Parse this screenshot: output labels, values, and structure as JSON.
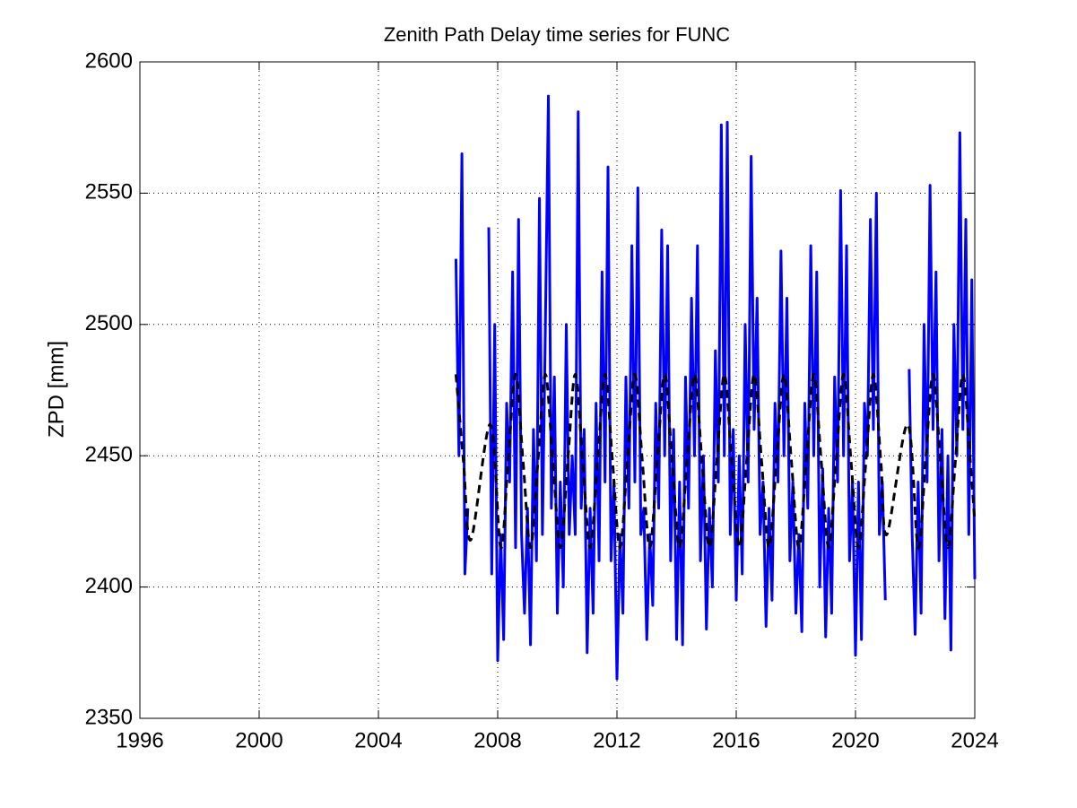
{
  "chart_data": {
    "type": "line",
    "title": "Zenith Path Delay time series for FUNC",
    "y_label": "ZPD [mm]",
    "xlim": [
      1996,
      2024
    ],
    "xticks": [
      1996,
      2000,
      2004,
      2008,
      2012,
      2016,
      2020,
      2024
    ],
    "ylim": [
      2350,
      2600
    ],
    "yticks": [
      2350,
      2400,
      2450,
      2500,
      2550,
      2600
    ],
    "grid": true,
    "series": [
      {
        "color": "#0000ff",
        "x": [
          2006.6,
          2006.7,
          2006.8,
          2006.9,
          2007.0,
          2007.1,
          2007.2,
          2007.3,
          2007.4,
          2007.5,
          2007.6,
          2007.7,
          2007.8,
          2007.9,
          2008.0,
          2008.1,
          2008.2,
          2008.3,
          2008.4,
          2008.5,
          2008.6,
          2008.7,
          2008.8,
          2008.9,
          2009.0,
          2009.1,
          2009.2,
          2009.3,
          2009.4,
          2009.5,
          2009.6,
          2009.7,
          2009.8,
          2009.9,
          2010.0,
          2010.1,
          2010.2,
          2010.3,
          2010.4,
          2010.5,
          2010.6,
          2010.7,
          2010.8,
          2010.9,
          2011.0,
          2011.1,
          2011.2,
          2011.3,
          2011.4,
          2011.5,
          2011.6,
          2011.7,
          2011.8,
          2011.9,
          2012.0,
          2012.1,
          2012.2,
          2012.3,
          2012.4,
          2012.5,
          2012.6,
          2012.7,
          2012.8,
          2012.9,
          2013.0,
          2013.1,
          2013.2,
          2013.3,
          2013.4,
          2013.5,
          2013.6,
          2013.7,
          2013.8,
          2013.9,
          2014.0,
          2014.1,
          2014.2,
          2014.3,
          2014.4,
          2014.5,
          2014.6,
          2014.7,
          2014.8,
          2014.9,
          2015.0,
          2015.1,
          2015.2,
          2015.3,
          2015.4,
          2015.5,
          2015.6,
          2015.7,
          2015.8,
          2015.9,
          2016.0,
          2016.1,
          2016.2,
          2016.3,
          2016.4,
          2016.5,
          2016.6,
          2016.7,
          2016.8,
          2016.9,
          2017.0,
          2017.1,
          2017.2,
          2017.3,
          2017.4,
          2017.5,
          2017.6,
          2017.7,
          2017.8,
          2017.9,
          2018.0,
          2018.1,
          2018.2,
          2018.3,
          2018.4,
          2018.5,
          2018.6,
          2018.7,
          2018.8,
          2018.9,
          2019.0,
          2019.1,
          2019.2,
          2019.3,
          2019.4,
          2019.5,
          2019.6,
          2019.7,
          2019.8,
          2019.9,
          2020.0,
          2020.1,
          2020.2,
          2020.3,
          2020.4,
          2020.5,
          2020.6,
          2020.7,
          2020.8,
          2020.9,
          2021.0,
          2021.1,
          2021.2,
          2021.3,
          2021.4,
          2021.5,
          2021.6,
          2021.7,
          2021.8,
          2021.9,
          2022.0,
          2022.1,
          2022.2,
          2022.3,
          2022.4,
          2022.5,
          2022.6,
          2022.7,
          2022.8,
          2022.9,
          2023.0,
          2023.1,
          2023.2,
          2023.3,
          2023.4,
          2023.5,
          2023.6,
          2023.7,
          2023.8,
          2023.9,
          2024.0
        ],
        "values": [
          2525,
          2450,
          2565,
          2405,
          2430,
          null,
          null,
          null,
          null,
          null,
          null,
          2537,
          2405,
          2500,
          2372,
          2420,
          2380,
          2470,
          2440,
          2520,
          2415,
          2540,
          2420,
          2390,
          2430,
          2378,
          2460,
          2410,
          2548,
          2420,
          2500,
          2587,
          2430,
          2480,
          2390,
          2440,
          2400,
          2500,
          2420,
          2450,
          2420,
          2581,
          2430,
          2460,
          2375,
          2430,
          2390,
          2470,
          2410,
          2520,
          2440,
          2560,
          2410,
          2440,
          2365,
          2420,
          2390,
          2480,
          2430,
          2530,
          2440,
          2552,
          2420,
          2430,
          2380,
          2420,
          2393,
          2470,
          2430,
          2536,
          2450,
          2530,
          2410,
          2460,
          2380,
          2440,
          2378,
          2480,
          2430,
          2510,
          2450,
          2530,
          2410,
          2450,
          2384,
          2430,
          2400,
          2490,
          2440,
          2576,
          2450,
          2577,
          2420,
          2460,
          2395,
          2450,
          2405,
          2500,
          2440,
          2564,
          2460,
          2510,
          2420,
          2440,
          2385,
          2430,
          2395,
          2470,
          2440,
          2528,
          2450,
          2510,
          2410,
          2440,
          2390,
          2420,
          2383,
          2470,
          2430,
          2530,
          2450,
          2520,
          2400,
          2445,
          2381,
          2430,
          2390,
          2480,
          2440,
          2551,
          2450,
          2530,
          2410,
          2440,
          2374,
          2440,
          2380,
          2470,
          2450,
          2540,
          2460,
          2550,
          2420,
          2440,
          2395,
          null,
          null,
          null,
          null,
          null,
          null,
          null,
          2483,
          2420,
          2382,
          2440,
          2390,
          2500,
          2440,
          2553,
          2460,
          2520,
          2410,
          2460,
          2388,
          2450,
          2376,
          2500,
          2450,
          2573,
          2460,
          2540,
          2420,
          2517,
          2403
        ]
      },
      {
        "color": "#000000",
        "dashed": true,
        "x": [
          2006.6,
          2006.85,
          2007.1,
          2007.75,
          2008.1,
          2008.35,
          2008.6,
          2008.85,
          2009.1,
          2009.35,
          2009.6,
          2009.85,
          2010.1,
          2010.35,
          2010.6,
          2010.85,
          2011.1,
          2011.35,
          2011.6,
          2011.85,
          2012.1,
          2012.35,
          2012.6,
          2012.85,
          2013.1,
          2013.35,
          2013.6,
          2013.85,
          2014.1,
          2014.35,
          2014.6,
          2014.85,
          2015.1,
          2015.35,
          2015.6,
          2015.85,
          2016.1,
          2016.35,
          2016.6,
          2016.85,
          2017.1,
          2017.35,
          2017.6,
          2017.85,
          2018.1,
          2018.35,
          2018.6,
          2018.85,
          2019.1,
          2019.35,
          2019.6,
          2019.85,
          2020.1,
          2020.35,
          2020.6,
          2020.85,
          2021.05,
          2021.75,
          2022.1,
          2022.35,
          2022.6,
          2022.85,
          2023.1,
          2023.35,
          2023.6,
          2023.85,
          2024.0
        ],
        "values": [
          2481,
          2448,
          2418,
          2462,
          2415,
          2448,
          2481,
          2448,
          2415,
          2448,
          2481,
          2448,
          2415,
          2448,
          2481,
          2448,
          2415,
          2448,
          2481,
          2448,
          2415,
          2448,
          2481,
          2448,
          2415,
          2448,
          2481,
          2448,
          2415,
          2448,
          2481,
          2448,
          2415,
          2448,
          2481,
          2448,
          2415,
          2448,
          2481,
          2448,
          2415,
          2448,
          2481,
          2448,
          2415,
          2448,
          2481,
          2448,
          2415,
          2448,
          2481,
          2448,
          2415,
          2448,
          2481,
          2448,
          2420,
          2462,
          2415,
          2448,
          2481,
          2448,
          2415,
          2448,
          2481,
          2448,
          2425
        ]
      }
    ]
  }
}
